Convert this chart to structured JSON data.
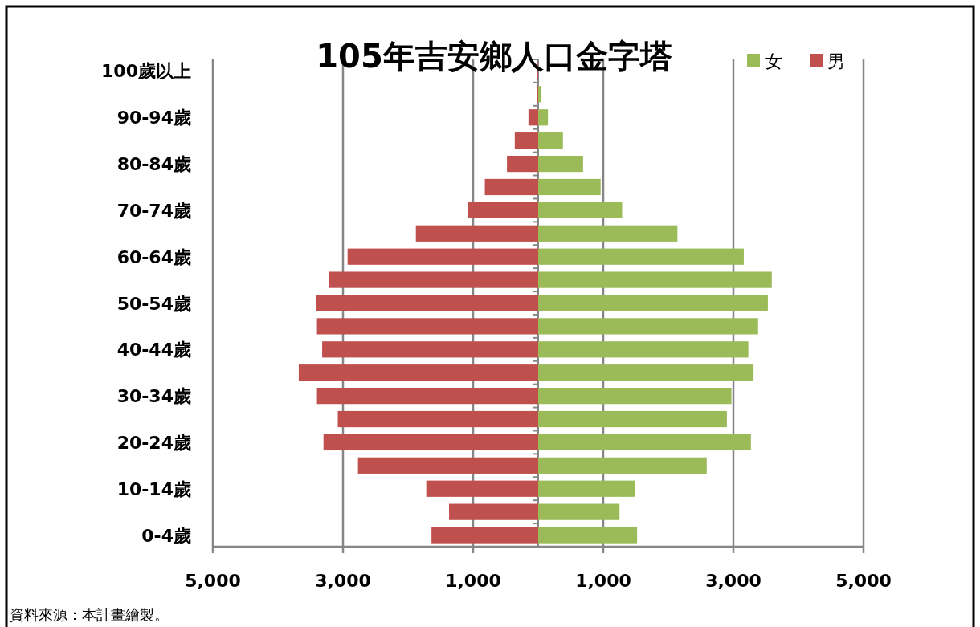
{
  "chart_data": {
    "type": "bar",
    "stacked": true,
    "orientation": "horizontal",
    "title": "105年吉安鄉人口金字塔",
    "categories": [
      "100歲以上",
      null,
      "90-94歲",
      null,
      "80-84歲",
      null,
      "70-74歲",
      null,
      "60-64歲",
      null,
      "50-54歲",
      null,
      "40-44歲",
      null,
      "30-34歲",
      null,
      "20-24歲",
      null,
      "10-14歲",
      null,
      "0-4歲"
    ],
    "series": [
      {
        "name": "女",
        "color": "#9bbb59",
        "values": [
          null,
          50,
          150,
          380,
          690,
          960,
          1290,
          2140,
          3160,
          3590,
          3530,
          3380,
          3230,
          3310,
          2970,
          2900,
          3270,
          2590,
          1490,
          1250,
          1520
        ]
      },
      {
        "name": "男",
        "color": "#c0504d",
        "values": [
          -20,
          -20,
          -150,
          -360,
          -480,
          -820,
          -1080,
          -1880,
          -2930,
          -3210,
          -3420,
          -3400,
          -3320,
          -3680,
          -3400,
          -3080,
          -3300,
          -2770,
          -1720,
          -1370,
          -1640
        ]
      }
    ],
    "xlim": [
      -5000,
      5000
    ],
    "xticks": [
      {
        "value": -5000,
        "label": "5,000"
      },
      {
        "value": -3000,
        "label": "3,000"
      },
      {
        "value": -1000,
        "label": "1,000"
      },
      {
        "value": 1000,
        "label": "1,000"
      },
      {
        "value": 3000,
        "label": "3,000"
      },
      {
        "value": 5000,
        "label": "5,000"
      }
    ],
    "grid": "x",
    "legend": "top right",
    "annotations": [
      "資料來源：本計畫繪製。"
    ]
  }
}
